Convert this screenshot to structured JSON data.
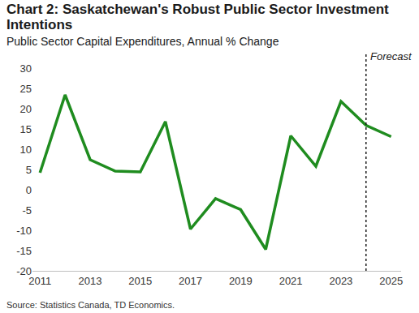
{
  "chart_data": {
    "type": "line",
    "title": "Chart 2: Saskatchewan's Robust Public Sector Investment Intentions",
    "subtitle": "Public Sector Capital Expenditures, Annual % Change",
    "source": "Source: Statistics Canada, TD Economics.",
    "x": [
      2011,
      2012,
      2013,
      2014,
      2015,
      2016,
      2017,
      2018,
      2019,
      2020,
      2021,
      2022,
      2023,
      2024,
      2025
    ],
    "values": [
      4.2,
      23.4,
      7.4,
      4.6,
      4.4,
      16.8,
      -9.7,
      -2.2,
      -4.9,
      -14.7,
      13.3,
      5.8,
      21.8,
      15.9,
      13.1
    ],
    "color": "#1f8c1f",
    "line_style": "solid",
    "xlim": [
      2010.7,
      2025.4
    ],
    "xticks": [
      2011,
      2013,
      2015,
      2017,
      2019,
      2021,
      2023,
      2025
    ],
    "ylim": [
      -20,
      30
    ],
    "yticks": [
      -20,
      -15,
      -10,
      -5,
      0,
      5,
      10,
      15,
      20,
      25,
      30
    ],
    "grid": false,
    "annotations": [
      {
        "text": "Forecast",
        "x": 2024
      }
    ]
  }
}
